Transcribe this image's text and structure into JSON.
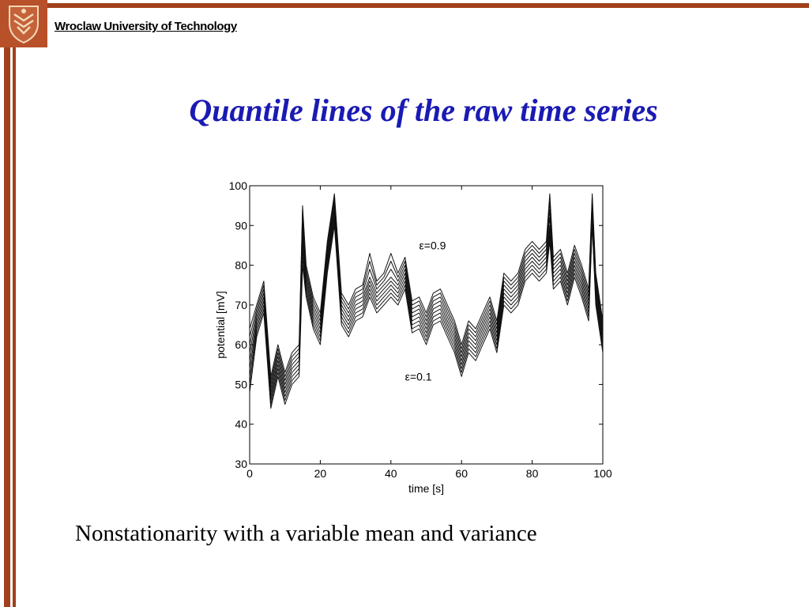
{
  "header": {
    "organization": "Wroclaw University of Technology",
    "logo_icon": "university-crest-icon",
    "accent_color": "#a0401c",
    "title_color": "#1a1ab4"
  },
  "slide": {
    "title": "Quantile lines of the raw time series",
    "caption": "Nonstationarity with a variable mean and variance"
  },
  "chart_data": {
    "type": "line",
    "xlabel": "time [s]",
    "ylabel": "potential [mV]",
    "xlim": [
      0,
      100
    ],
    "ylim": [
      30,
      100
    ],
    "xticks": [
      0,
      20,
      40,
      60,
      80,
      100
    ],
    "yticks": [
      30,
      40,
      50,
      60,
      70,
      80,
      90,
      100
    ],
    "grid": false,
    "annotations": [
      {
        "text": "ε=0.9",
        "x": 48,
        "y": 84
      },
      {
        "text": "ε=0.1",
        "x": 44,
        "y": 51
      }
    ],
    "x": [
      0,
      2,
      4,
      6,
      8,
      10,
      12,
      14,
      15,
      16,
      18,
      20,
      22,
      24,
      26,
      28,
      30,
      32,
      34,
      36,
      38,
      40,
      42,
      44,
      46,
      48,
      50,
      52,
      54,
      56,
      58,
      60,
      62,
      64,
      66,
      68,
      70,
      72,
      74,
      76,
      78,
      80,
      82,
      84,
      85,
      86,
      88,
      90,
      92,
      94,
      96,
      97,
      98,
      100
    ],
    "series": [
      {
        "values": [
          48,
          62,
          68,
          44,
          52,
          45,
          50,
          52,
          80,
          72,
          64,
          60,
          78,
          90,
          65,
          62,
          66,
          67,
          72,
          68,
          70,
          72,
          70,
          74,
          63,
          64,
          60,
          65,
          66,
          62,
          58,
          52,
          58,
          56,
          60,
          64,
          58,
          70,
          68,
          70,
          76,
          78,
          76,
          78,
          86,
          74,
          76,
          70,
          77,
          72,
          66,
          90,
          70,
          58
        ]
      },
      {
        "values": [
          50,
          63,
          69,
          45,
          53,
          46,
          51,
          53,
          82,
          73,
          65,
          61,
          79,
          91,
          66,
          63,
          67,
          68,
          73,
          69,
          71,
          73,
          71,
          75,
          64,
          65,
          61,
          66,
          67,
          63,
          59,
          53,
          59,
          57,
          61,
          65,
          59,
          71,
          69,
          71,
          77,
          79,
          77,
          79,
          87,
          75,
          77,
          71,
          78,
          73,
          67,
          91,
          71,
          59
        ]
      },
      {
        "values": [
          52,
          64,
          70,
          46,
          54,
          47,
          52,
          54,
          84,
          74,
          66,
          62,
          80,
          92,
          67,
          64,
          68,
          69,
          74,
          70,
          72,
          74,
          72,
          76,
          65,
          66,
          62,
          67,
          68,
          64,
          60,
          54,
          60,
          58,
          62,
          66,
          60,
          72,
          70,
          72,
          78,
          80,
          78,
          80,
          88,
          76,
          78,
          72,
          79,
          74,
          68,
          92,
          72,
          60
        ]
      },
      {
        "values": [
          54,
          65,
          71,
          47,
          55,
          48,
          53,
          55,
          86,
          75,
          67,
          63,
          81,
          93,
          68,
          65,
          69,
          70,
          75,
          71,
          73,
          75,
          73,
          77,
          66,
          67,
          63,
          68,
          69,
          65,
          61,
          55,
          61,
          59,
          63,
          67,
          61,
          73,
          71,
          73,
          79,
          81,
          79,
          81,
          89,
          77,
          79,
          73,
          80,
          75,
          69,
          93,
          73,
          61
        ]
      },
      {
        "values": [
          56,
          66,
          72,
          48,
          56,
          49,
          54,
          56,
          88,
          76,
          68,
          64,
          82,
          94,
          69,
          66,
          70,
          71,
          76,
          72,
          74,
          76,
          74,
          78,
          67,
          68,
          64,
          69,
          70,
          66,
          62,
          56,
          62,
          60,
          64,
          68,
          62,
          74,
          72,
          74,
          80,
          82,
          80,
          82,
          90,
          78,
          80,
          74,
          81,
          76,
          70,
          94,
          74,
          62
        ]
      },
      {
        "values": [
          58,
          67,
          73,
          49,
          57,
          50,
          55,
          57,
          90,
          77,
          69,
          65,
          83,
          95,
          70,
          67,
          71,
          72,
          77,
          73,
          75,
          77,
          75,
          79,
          68,
          69,
          65,
          70,
          71,
          67,
          63,
          57,
          63,
          61,
          65,
          69,
          63,
          75,
          73,
          75,
          81,
          83,
          81,
          83,
          92,
          79,
          81,
          75,
          82,
          77,
          71,
          95,
          75,
          63
        ]
      },
      {
        "values": [
          60,
          68,
          74,
          50,
          58,
          51,
          56,
          58,
          92,
          78,
          70,
          66,
          84,
          96,
          71,
          68,
          72,
          73,
          79,
          74,
          76,
          79,
          76,
          80,
          69,
          70,
          66,
          71,
          72,
          68,
          64,
          58,
          64,
          62,
          66,
          70,
          64,
          76,
          74,
          76,
          82,
          84,
          82,
          84,
          94,
          80,
          82,
          76,
          83,
          78,
          72,
          96,
          76,
          64
        ]
      },
      {
        "values": [
          62,
          69,
          75,
          51,
          59,
          52,
          57,
          59,
          94,
          79,
          71,
          67,
          85,
          97,
          72,
          69,
          73,
          74,
          81,
          75,
          77,
          81,
          77,
          81,
          70,
          71,
          67,
          72,
          73,
          69,
          65,
          59,
          65,
          63,
          67,
          71,
          65,
          77,
          75,
          77,
          83,
          85,
          83,
          85,
          96,
          81,
          83,
          77,
          84,
          79,
          73,
          97,
          77,
          65
        ]
      },
      {
        "values": [
          64,
          70,
          76,
          52,
          60,
          53,
          58,
          60,
          95,
          80,
          72,
          68,
          86,
          98,
          73,
          70,
          74,
          75,
          83,
          76,
          78,
          83,
          78,
          82,
          71,
          72,
          68,
          73,
          74,
          70,
          66,
          60,
          66,
          64,
          68,
          72,
          66,
          78,
          76,
          78,
          84,
          86,
          84,
          86,
          98,
          82,
          84,
          78,
          85,
          80,
          74,
          98,
          78,
          66
        ]
      }
    ]
  }
}
